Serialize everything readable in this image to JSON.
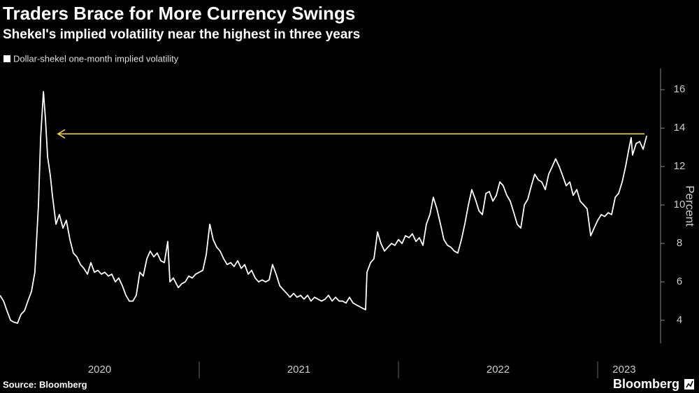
{
  "chart_data": {
    "type": "line",
    "title": "Traders Brace for More Currency Swings",
    "subtitle": "Shekel's implied volatility near the highest in three years",
    "y_label": "Percent",
    "source": "Source: Bloomberg",
    "brand": "Bloomberg",
    "x": [
      2020,
      2020.018,
      2020.035,
      2020.053,
      2020.07,
      2020.088,
      2020.105,
      2020.123,
      2020.14,
      2020.158,
      2020.175,
      2020.193,
      2020.204,
      2020.218,
      2020.228,
      2020.239,
      2020.253,
      2020.263,
      2020.281,
      2020.298,
      2020.316,
      2020.333,
      2020.351,
      2020.368,
      2020.386,
      2020.404,
      2020.421,
      2020.439,
      2020.456,
      2020.474,
      2020.491,
      2020.509,
      2020.526,
      2020.544,
      2020.561,
      2020.579,
      2020.596,
      2020.614,
      2020.632,
      2020.649,
      2020.667,
      2020.684,
      2020.702,
      2020.719,
      2020.737,
      2020.754,
      2020.772,
      2020.789,
      2020.807,
      2020.825,
      2020.842,
      2020.853,
      2020.87,
      2020.895,
      2020.912,
      2020.93,
      2020.947,
      2020.965,
      2020.982,
      2021,
      2021.018,
      2021.035,
      2021.053,
      2021.07,
      2021.088,
      2021.105,
      2021.123,
      2021.14,
      2021.158,
      2021.175,
      2021.193,
      2021.211,
      2021.228,
      2021.246,
      2021.263,
      2021.281,
      2021.298,
      2021.316,
      2021.333,
      2021.351,
      2021.368,
      2021.386,
      2021.404,
      2021.421,
      2021.439,
      2021.456,
      2021.474,
      2021.491,
      2021.509,
      2021.526,
      2021.544,
      2021.561,
      2021.579,
      2021.596,
      2021.614,
      2021.632,
      2021.649,
      2021.667,
      2021.684,
      2021.702,
      2021.719,
      2021.737,
      2021.754,
      2021.772,
      2021.789,
      2021.807,
      2021.825,
      2021.835,
      2021.842,
      2021.86,
      2021.877,
      2021.895,
      2021.912,
      2021.93,
      2021.947,
      2021.965,
      2021.982,
      2022,
      2022.018,
      2022.035,
      2022.053,
      2022.07,
      2022.088,
      2022.105,
      2022.123,
      2022.14,
      2022.158,
      2022.175,
      2022.193,
      2022.211,
      2022.228,
      2022.246,
      2022.263,
      2022.281,
      2022.298,
      2022.316,
      2022.333,
      2022.351,
      2022.368,
      2022.386,
      2022.404,
      2022.421,
      2022.439,
      2022.456,
      2022.474,
      2022.491,
      2022.509,
      2022.526,
      2022.544,
      2022.561,
      2022.579,
      2022.596,
      2022.614,
      2022.632,
      2022.649,
      2022.667,
      2022.684,
      2022.702,
      2022.719,
      2022.737,
      2022.754,
      2022.772,
      2022.789,
      2022.807,
      2022.825,
      2022.842,
      2022.86,
      2022.877,
      2022.895,
      2022.912,
      2022.93,
      2022.947,
      2022.965,
      2022.982,
      2023,
      2023.018,
      2023.035,
      2023.053,
      2023.07,
      2023.088,
      2023.105,
      2023.123,
      2023.14,
      2023.158,
      2023.168,
      2023.175,
      2023.193,
      2023.211,
      2023.228,
      2023.246
    ],
    "series": [
      {
        "name": "Dollar-shekel one-month implied volatility",
        "color": "#ffffff",
        "values": [
          5.3,
          5.0,
          4.5,
          4.0,
          3.9,
          3.85,
          4.3,
          4.5,
          5.0,
          5.5,
          6.5,
          10.0,
          13.5,
          15.9,
          14.5,
          12.5,
          11.5,
          10.5,
          9.0,
          9.5,
          8.8,
          9.2,
          8.2,
          7.5,
          7.3,
          6.9,
          6.7,
          6.4,
          7.0,
          6.5,
          6.6,
          6.4,
          6.5,
          6.3,
          6.4,
          6.0,
          6.2,
          5.8,
          5.3,
          5.0,
          5.0,
          5.3,
          6.5,
          6.3,
          7.2,
          7.6,
          7.3,
          7.5,
          7.1,
          7.0,
          8.1,
          6.0,
          6.2,
          5.7,
          5.9,
          6.0,
          6.3,
          6.2,
          6.4,
          6.5,
          6.6,
          7.4,
          9.0,
          8.2,
          7.8,
          7.6,
          7.2,
          6.9,
          7.0,
          6.8,
          7.1,
          6.7,
          6.9,
          6.4,
          6.6,
          6.2,
          6.0,
          6.1,
          6.0,
          6.1,
          6.9,
          6.4,
          5.8,
          5.6,
          5.4,
          5.2,
          5.4,
          5.2,
          5.3,
          5.1,
          5.3,
          5.0,
          5.2,
          5.1,
          5.0,
          5.1,
          5.3,
          5.0,
          5.2,
          5.0,
          5.0,
          4.9,
          5.2,
          4.9,
          4.8,
          4.7,
          4.6,
          4.55,
          6.5,
          7.0,
          7.2,
          8.6,
          8.0,
          7.6,
          7.8,
          8.0,
          7.9,
          8.2,
          8.0,
          8.4,
          8.3,
          8.5,
          8.1,
          8.3,
          7.9,
          9.0,
          9.5,
          10.4,
          9.8,
          9.0,
          8.2,
          7.9,
          7.8,
          7.6,
          7.5,
          8.2,
          9.0,
          10.0,
          10.8,
          10.3,
          9.7,
          9.5,
          10.6,
          10.7,
          10.2,
          10.5,
          11.2,
          11.0,
          10.5,
          10.2,
          9.6,
          9.0,
          8.8,
          10.0,
          10.3,
          11.0,
          11.6,
          11.3,
          11.2,
          10.8,
          11.6,
          12.0,
          12.4,
          12.0,
          11.5,
          11.0,
          11.2,
          10.5,
          10.8,
          10.2,
          10.0,
          9.8,
          8.4,
          8.8,
          9.2,
          9.5,
          9.4,
          9.6,
          9.5,
          10.4,
          10.6,
          11.2,
          12.0,
          13.0,
          13.5,
          12.6,
          13.2,
          13.3,
          12.9,
          13.6
        ]
      }
    ],
    "xlim": [
      2020,
      2023.298
    ],
    "xticks": [
      {
        "value": 2020.5,
        "label": "2020"
      },
      {
        "value": 2021.5,
        "label": "2021"
      },
      {
        "value": 2022.5,
        "label": "2022"
      },
      {
        "value": 2023.133,
        "label": "2023"
      }
    ],
    "ylim": [
      2.8,
      17.1
    ],
    "yticks": [
      4,
      6,
      8,
      10,
      12,
      14,
      16
    ],
    "y_axis_side": "right",
    "annotation_arrow": {
      "y": 13.7,
      "x_from": 2023.235,
      "x_to": 2020.291,
      "color": "#f2d64b"
    }
  }
}
